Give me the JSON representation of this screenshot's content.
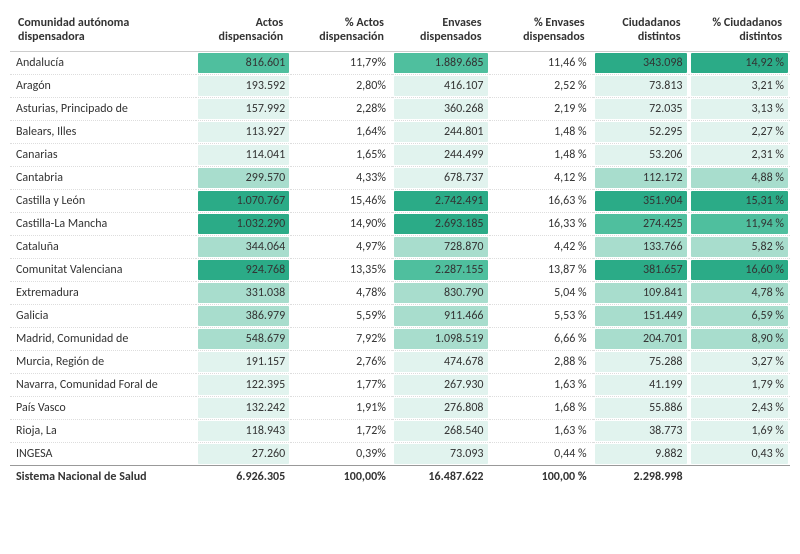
{
  "columns": [
    {
      "key": "region",
      "label": "Comunidad autónoma dispensadora",
      "width": 170
    },
    {
      "key": "actos",
      "label": "Actos dispensación",
      "heat": true
    },
    {
      "key": "pct_actos",
      "label": "% Actos dispensación",
      "heat": false
    },
    {
      "key": "envases",
      "label": "Envases dispensados",
      "heat": true
    },
    {
      "key": "pct_envases",
      "label": "% Envases dispensados",
      "heat": false
    },
    {
      "key": "ciud",
      "label": "Ciudadanos distintos",
      "heat": true
    },
    {
      "key": "pct_ciud",
      "label": "% Ciudadanos distintos",
      "heat": true
    }
  ],
  "heat_colors": {
    "low": "#e1f3ee",
    "mid": "#a8ddcd",
    "high": "#4fbf9e",
    "max": "#2bab87"
  },
  "rows": [
    {
      "region": "Andalucía",
      "actos": "816.601",
      "actos_n": 816601,
      "pct_actos": "11,79%",
      "envases": "1.889.685",
      "envases_n": 1889685,
      "pct_envases": "11,46 %",
      "ciud": "343.098",
      "ciud_n": 343098,
      "pct_ciud": "14,92 %",
      "pct_ciud_n": 14.92
    },
    {
      "region": "Aragón",
      "actos": "193.592",
      "actos_n": 193592,
      "pct_actos": "2,80%",
      "envases": "416.107",
      "envases_n": 416107,
      "pct_envases": "2,52 %",
      "ciud": "73.813",
      "ciud_n": 73813,
      "pct_ciud": "3,21 %",
      "pct_ciud_n": 3.21
    },
    {
      "region": "Asturias, Principado de",
      "actos": "157.992",
      "actos_n": 157992,
      "pct_actos": "2,28%",
      "envases": "360.268",
      "envases_n": 360268,
      "pct_envases": "2,19 %",
      "ciud": "72.035",
      "ciud_n": 72035,
      "pct_ciud": "3,13 %",
      "pct_ciud_n": 3.13
    },
    {
      "region": "Balears, Illes",
      "actos": "113.927",
      "actos_n": 113927,
      "pct_actos": "1,64%",
      "envases": "244.801",
      "envases_n": 244801,
      "pct_envases": "1,48 %",
      "ciud": "52.295",
      "ciud_n": 52295,
      "pct_ciud": "2,27 %",
      "pct_ciud_n": 2.27
    },
    {
      "region": "Canarias",
      "actos": "114.041",
      "actos_n": 114041,
      "pct_actos": "1,65%",
      "envases": "244.499",
      "envases_n": 244499,
      "pct_envases": "1,48 %",
      "ciud": "53.206",
      "ciud_n": 53206,
      "pct_ciud": "2,31 %",
      "pct_ciud_n": 2.31
    },
    {
      "region": "Cantabria",
      "actos": "299.570",
      "actos_n": 299570,
      "pct_actos": "4,33%",
      "envases": "678.737",
      "envases_n": 678737,
      "pct_envases": "4,12 %",
      "ciud": "112.172",
      "ciud_n": 112172,
      "pct_ciud": "4,88 %",
      "pct_ciud_n": 4.88
    },
    {
      "region": "Castilla y León",
      "actos": "1.070.767",
      "actos_n": 1070767,
      "pct_actos": "15,46%",
      "envases": "2.742.491",
      "envases_n": 2742491,
      "pct_envases": "16,63 %",
      "ciud": "351.904",
      "ciud_n": 351904,
      "pct_ciud": "15,31 %",
      "pct_ciud_n": 15.31
    },
    {
      "region": "Castilla-La Mancha",
      "actos": "1.032.290",
      "actos_n": 1032290,
      "pct_actos": "14,90%",
      "envases": "2.693.185",
      "envases_n": 2693185,
      "pct_envases": "16,33 %",
      "ciud": "274.425",
      "ciud_n": 274425,
      "pct_ciud": "11,94 %",
      "pct_ciud_n": 11.94
    },
    {
      "region": "Cataluña",
      "actos": "344.064",
      "actos_n": 344064,
      "pct_actos": "4,97%",
      "envases": "728.870",
      "envases_n": 728870,
      "pct_envases": "4,42 %",
      "ciud": "133.766",
      "ciud_n": 133766,
      "pct_ciud": "5,82 %",
      "pct_ciud_n": 5.82
    },
    {
      "region": "Comunitat Valenciana",
      "actos": "924.768",
      "actos_n": 924768,
      "pct_actos": "13,35%",
      "envases": "2.287.155",
      "envases_n": 2287155,
      "pct_envases": "13,87 %",
      "ciud": "381.657",
      "ciud_n": 381657,
      "pct_ciud": "16,60 %",
      "pct_ciud_n": 16.6
    },
    {
      "region": "Extremadura",
      "actos": "331.038",
      "actos_n": 331038,
      "pct_actos": "4,78%",
      "envases": "830.790",
      "envases_n": 830790,
      "pct_envases": "5,04 %",
      "ciud": "109.841",
      "ciud_n": 109841,
      "pct_ciud": "4,78 %",
      "pct_ciud_n": 4.78
    },
    {
      "region": "Galicia",
      "actos": "386.979",
      "actos_n": 386979,
      "pct_actos": "5,59%",
      "envases": "911.466",
      "envases_n": 911466,
      "pct_envases": "5,53 %",
      "ciud": "151.449",
      "ciud_n": 151449,
      "pct_ciud": "6,59 %",
      "pct_ciud_n": 6.59
    },
    {
      "region": "Madrid, Comunidad de",
      "actos": "548.679",
      "actos_n": 548679,
      "pct_actos": "7,92%",
      "envases": "1.098.519",
      "envases_n": 1098519,
      "pct_envases": "6,66 %",
      "ciud": "204.701",
      "ciud_n": 204701,
      "pct_ciud": "8,90 %",
      "pct_ciud_n": 8.9
    },
    {
      "region": "Murcia, Región de",
      "actos": "191.157",
      "actos_n": 191157,
      "pct_actos": "2,76%",
      "envases": "474.678",
      "envases_n": 474678,
      "pct_envases": "2,88 %",
      "ciud": "75.288",
      "ciud_n": 75288,
      "pct_ciud": "3,27 %",
      "pct_ciud_n": 3.27
    },
    {
      "region": "Navarra, Comunidad Foral de",
      "actos": "122.395",
      "actos_n": 122395,
      "pct_actos": "1,77%",
      "envases": "267.930",
      "envases_n": 267930,
      "pct_envases": "1,63 %",
      "ciud": "41.199",
      "ciud_n": 41199,
      "pct_ciud": "1,79 %",
      "pct_ciud_n": 1.79
    },
    {
      "region": "País Vasco",
      "actos": "132.242",
      "actos_n": 132242,
      "pct_actos": "1,91%",
      "envases": "276.808",
      "envases_n": 276808,
      "pct_envases": "1,68 %",
      "ciud": "55.886",
      "ciud_n": 55886,
      "pct_ciud": "2,43 %",
      "pct_ciud_n": 2.43
    },
    {
      "region": "Rioja, La",
      "actos": "118.943",
      "actos_n": 118943,
      "pct_actos": "1,72%",
      "envases": "268.540",
      "envases_n": 268540,
      "pct_envases": "1,63 %",
      "ciud": "38.773",
      "ciud_n": 38773,
      "pct_ciud": "1,69 %",
      "pct_ciud_n": 1.69
    },
    {
      "region": "INGESA",
      "actos": "27.260",
      "actos_n": 27260,
      "pct_actos": "0,39%",
      "envases": "73.093",
      "envases_n": 73093,
      "pct_envases": "0,44 %",
      "ciud": "9.882",
      "ciud_n": 9882,
      "pct_ciud": "0,43 %",
      "pct_ciud_n": 0.43
    }
  ],
  "total": {
    "region": "Sistema Nacional de Salud",
    "actos": "6.926.305",
    "pct_actos": "100,00%",
    "envases": "16.487.622",
    "pct_envases": "100,00 %",
    "ciud": "2.298.998",
    "pct_ciud": ""
  }
}
